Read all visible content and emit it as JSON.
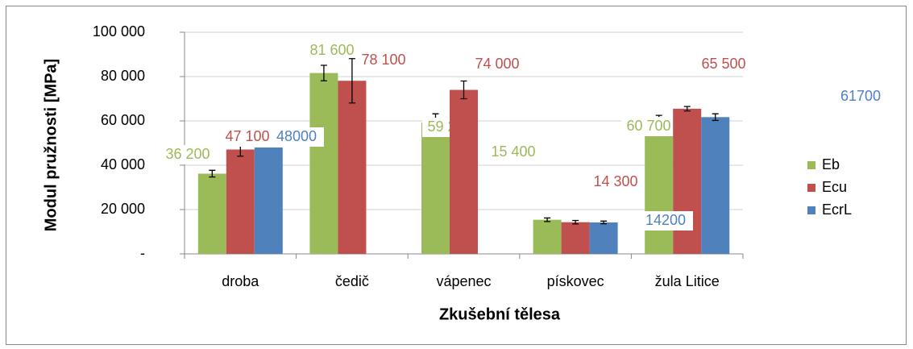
{
  "chart_data": {
    "type": "bar",
    "x_label": "Zkušební tělesa",
    "y_label": "Modul pružnosti [MPa]",
    "categories": [
      "droba",
      "čedič",
      "vápenec",
      "pískovec",
      "žula Litice"
    ],
    "series": [
      {
        "name": "Eb",
        "color": "#9bbb59",
        "values": [
          36200,
          81600,
          59200,
          15400,
          60700
        ],
        "errors": [
          1500,
          3500,
          4000,
          800,
          1800
        ],
        "value_labels": [
          "36 200",
          "81 600",
          "59 200",
          "15 400",
          "60 700"
        ]
      },
      {
        "name": "Ecu",
        "color": "#c0504d",
        "values": [
          47100,
          78100,
          74000,
          14300,
          65500
        ],
        "errors": [
          3000,
          10000,
          4000,
          800,
          1000
        ],
        "value_labels": [
          "47 100",
          "78 100",
          "74 000",
          "14 300",
          "65 500"
        ]
      },
      {
        "name": "EcrL",
        "color": "#4f81bd",
        "values": [
          48000,
          null,
          null,
          14200,
          61700
        ],
        "errors": [
          null,
          null,
          null,
          600,
          1500
        ],
        "value_labels": [
          "48000",
          null,
          null,
          "14200",
          "61700"
        ]
      }
    ],
    "ylim": [
      0,
      100000
    ],
    "yticks": [
      {
        "value": 0,
        "label": "-"
      },
      {
        "value": 20000,
        "label": "20 000"
      },
      {
        "value": 40000,
        "label": "40 000"
      },
      {
        "value": 60000,
        "label": "60 000"
      },
      {
        "value": 80000,
        "label": "80 000"
      },
      {
        "value": 100000,
        "label": "100 000"
      }
    ],
    "grid": true,
    "legend": "right"
  }
}
